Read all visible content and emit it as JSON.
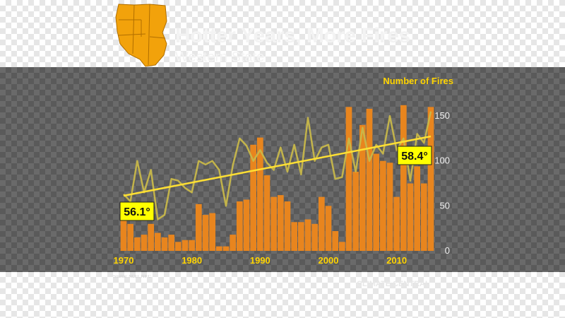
{
  "header": {
    "title": "Hotter Years, More Fires",
    "subtitle": "Western State"
  },
  "footer": {
    "source": "Source: NCEI, NIFC",
    "brand": "CLIMATE CENTRAL"
  },
  "colors": {
    "bar": "#e8851e",
    "temp_line": "#c8b84a",
    "trend_line": "#ffe033",
    "label_bg": "#ffff00",
    "axis_text": "#ffd400",
    "state_fill": "#f2a20b"
  },
  "chart_data": {
    "type": "bar",
    "title": "",
    "ylabel": "Number of Fires",
    "xlabel": "",
    "ylim": [
      0,
      165
    ],
    "y_ticks": [
      0,
      50,
      100,
      150
    ],
    "x_ticks": [
      1970,
      1980,
      1990,
      2000,
      2010
    ],
    "x": [
      1970,
      1971,
      1972,
      1973,
      1974,
      1975,
      1976,
      1977,
      1978,
      1979,
      1980,
      1981,
      1982,
      1983,
      1984,
      1985,
      1986,
      1987,
      1988,
      1989,
      1990,
      1991,
      1992,
      1993,
      1994,
      1995,
      1996,
      1997,
      1998,
      1999,
      2000,
      2001,
      2002,
      2003,
      2004,
      2005,
      2006,
      2007,
      2008,
      2009,
      2010,
      2011,
      2012,
      2013,
      2014,
      2015
    ],
    "series": [
      {
        "name": "Number of Fires",
        "type": "bar",
        "values": [
          38,
          30,
          15,
          18,
          30,
          20,
          15,
          18,
          10,
          12,
          12,
          52,
          40,
          42,
          5,
          5,
          18,
          55,
          57,
          118,
          126,
          84,
          60,
          62,
          55,
          32,
          32,
          35,
          30,
          60,
          50,
          22,
          10,
          160,
          88,
          140,
          158,
          108,
          100,
          98,
          60,
          162,
          75,
          94,
          75,
          160
        ]
      },
      {
        "name": "Temperature",
        "type": "line",
        "values": [
          63,
          55,
          100,
          65,
          90,
          35,
          40,
          80,
          78,
          70,
          65,
          100,
          96,
          100,
          90,
          50,
          95,
          125,
          117,
          100,
          112,
          98,
          90,
          115,
          88,
          118,
          85,
          148,
          100,
          115,
          118,
          80,
          82,
          125,
          88,
          137,
          100,
          118,
          108,
          150,
          112,
          125,
          78,
          130,
          120,
          155
        ]
      }
    ],
    "trend": {
      "start": [
        1970,
        56.1
      ],
      "end": [
        2015,
        58.4
      ]
    },
    "annotations": [
      "56.1°",
      "58.4°"
    ]
  }
}
